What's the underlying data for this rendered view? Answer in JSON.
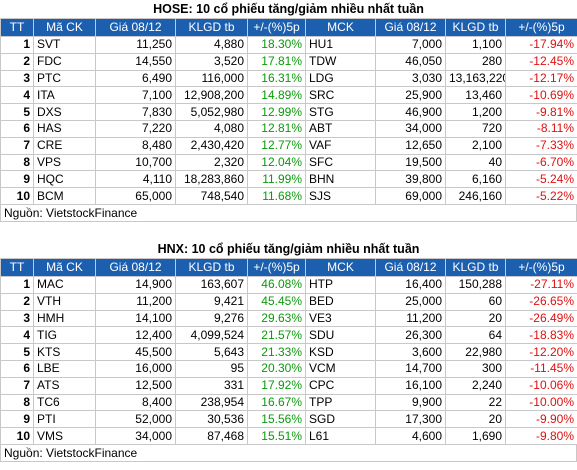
{
  "tables": [
    {
      "title": "HOSE: 10 cổ phiếu tăng/giảm nhiều nhất tuần",
      "header": [
        "TT",
        "Mã CK",
        "Giá 08/12",
        "KLGD tb",
        "+/-(%)5p",
        "MCK",
        "Giá 08/12",
        "KLGD tb",
        "+/-(%)5p"
      ],
      "rows": [
        [
          "1",
          "SVT",
          "11,250",
          "4,880",
          "18.30%",
          "HU1",
          "7,000",
          "1,100",
          "-17.94%"
        ],
        [
          "2",
          "FDC",
          "14,550",
          "3,520",
          "17.81%",
          "TDW",
          "46,050",
          "280",
          "-12.45%"
        ],
        [
          "3",
          "PTC",
          "6,490",
          "116,000",
          "16.31%",
          "LDG",
          "3,030",
          "13,163,220",
          "-12.17%"
        ],
        [
          "4",
          "ITA",
          "7,100",
          "12,908,200",
          "14.89%",
          "SRC",
          "25,900",
          "13,460",
          "-10.69%"
        ],
        [
          "5",
          "DXS",
          "7,830",
          "5,052,980",
          "12.99%",
          "STG",
          "46,900",
          "1,200",
          "-9.81%"
        ],
        [
          "6",
          "HAS",
          "7,220",
          "4,080",
          "12.81%",
          "ABT",
          "34,000",
          "720",
          "-8.11%"
        ],
        [
          "7",
          "CRE",
          "8,480",
          "2,430,420",
          "12.77%",
          "VAF",
          "12,650",
          "2,100",
          "-7.33%"
        ],
        [
          "8",
          "VPS",
          "10,700",
          "2,320",
          "12.04%",
          "SFC",
          "19,500",
          "40",
          "-6.70%"
        ],
        [
          "9",
          "HQC",
          "4,110",
          "18,283,860",
          "11.99%",
          "BHN",
          "39,800",
          "6,160",
          "-5.24%"
        ],
        [
          "10",
          "BCM",
          "65,000",
          "748,540",
          "11.68%",
          "SJS",
          "69,000",
          "246,160",
          "-5.22%"
        ]
      ],
      "source": "Nguồn: VietstockFinance"
    },
    {
      "title": "HNX: 10 cổ phiếu tăng/giảm nhiều nhất tuần",
      "header": [
        "TT",
        "Mã CK",
        "Giá 08/12",
        "KLGD tb",
        "+/-(%)5p",
        "MCK",
        "Giá 08/12",
        "KLGD tb",
        "+/-(%)5p"
      ],
      "rows": [
        [
          "1",
          "MAC",
          "14,900",
          "163,607",
          "46.08%",
          "HTP",
          "16,400",
          "150,288",
          "-27.11%"
        ],
        [
          "2",
          "VTH",
          "11,200",
          "9,421",
          "45.45%",
          "BED",
          "25,000",
          "60",
          "-26.65%"
        ],
        [
          "3",
          "HMH",
          "14,100",
          "9,276",
          "29.63%",
          "VE3",
          "11,200",
          "20",
          "-26.49%"
        ],
        [
          "4",
          "TIG",
          "12,400",
          "4,099,524",
          "21.57%",
          "SDU",
          "26,300",
          "64",
          "-18.83%"
        ],
        [
          "5",
          "KTS",
          "45,500",
          "5,643",
          "21.33%",
          "KSD",
          "3,600",
          "22,980",
          "-12.20%"
        ],
        [
          "6",
          "LBE",
          "16,000",
          "95",
          "20.30%",
          "VCM",
          "14,700",
          "300",
          "-11.45%"
        ],
        [
          "7",
          "ATS",
          "12,500",
          "331",
          "17.92%",
          "CPC",
          "16,100",
          "2,240",
          "-10.06%"
        ],
        [
          "8",
          "TC6",
          "8,400",
          "238,954",
          "16.67%",
          "TPP",
          "9,900",
          "22",
          "-10.00%"
        ],
        [
          "9",
          "PTI",
          "52,000",
          "30,536",
          "15.56%",
          "SGD",
          "17,300",
          "20",
          "-9.90%"
        ],
        [
          "10",
          "VMS",
          "34,000",
          "87,468",
          "15.51%",
          "L61",
          "4,600",
          "1,690",
          "-9.80%"
        ]
      ],
      "source": "Nguồn: VietstockFinance"
    }
  ]
}
